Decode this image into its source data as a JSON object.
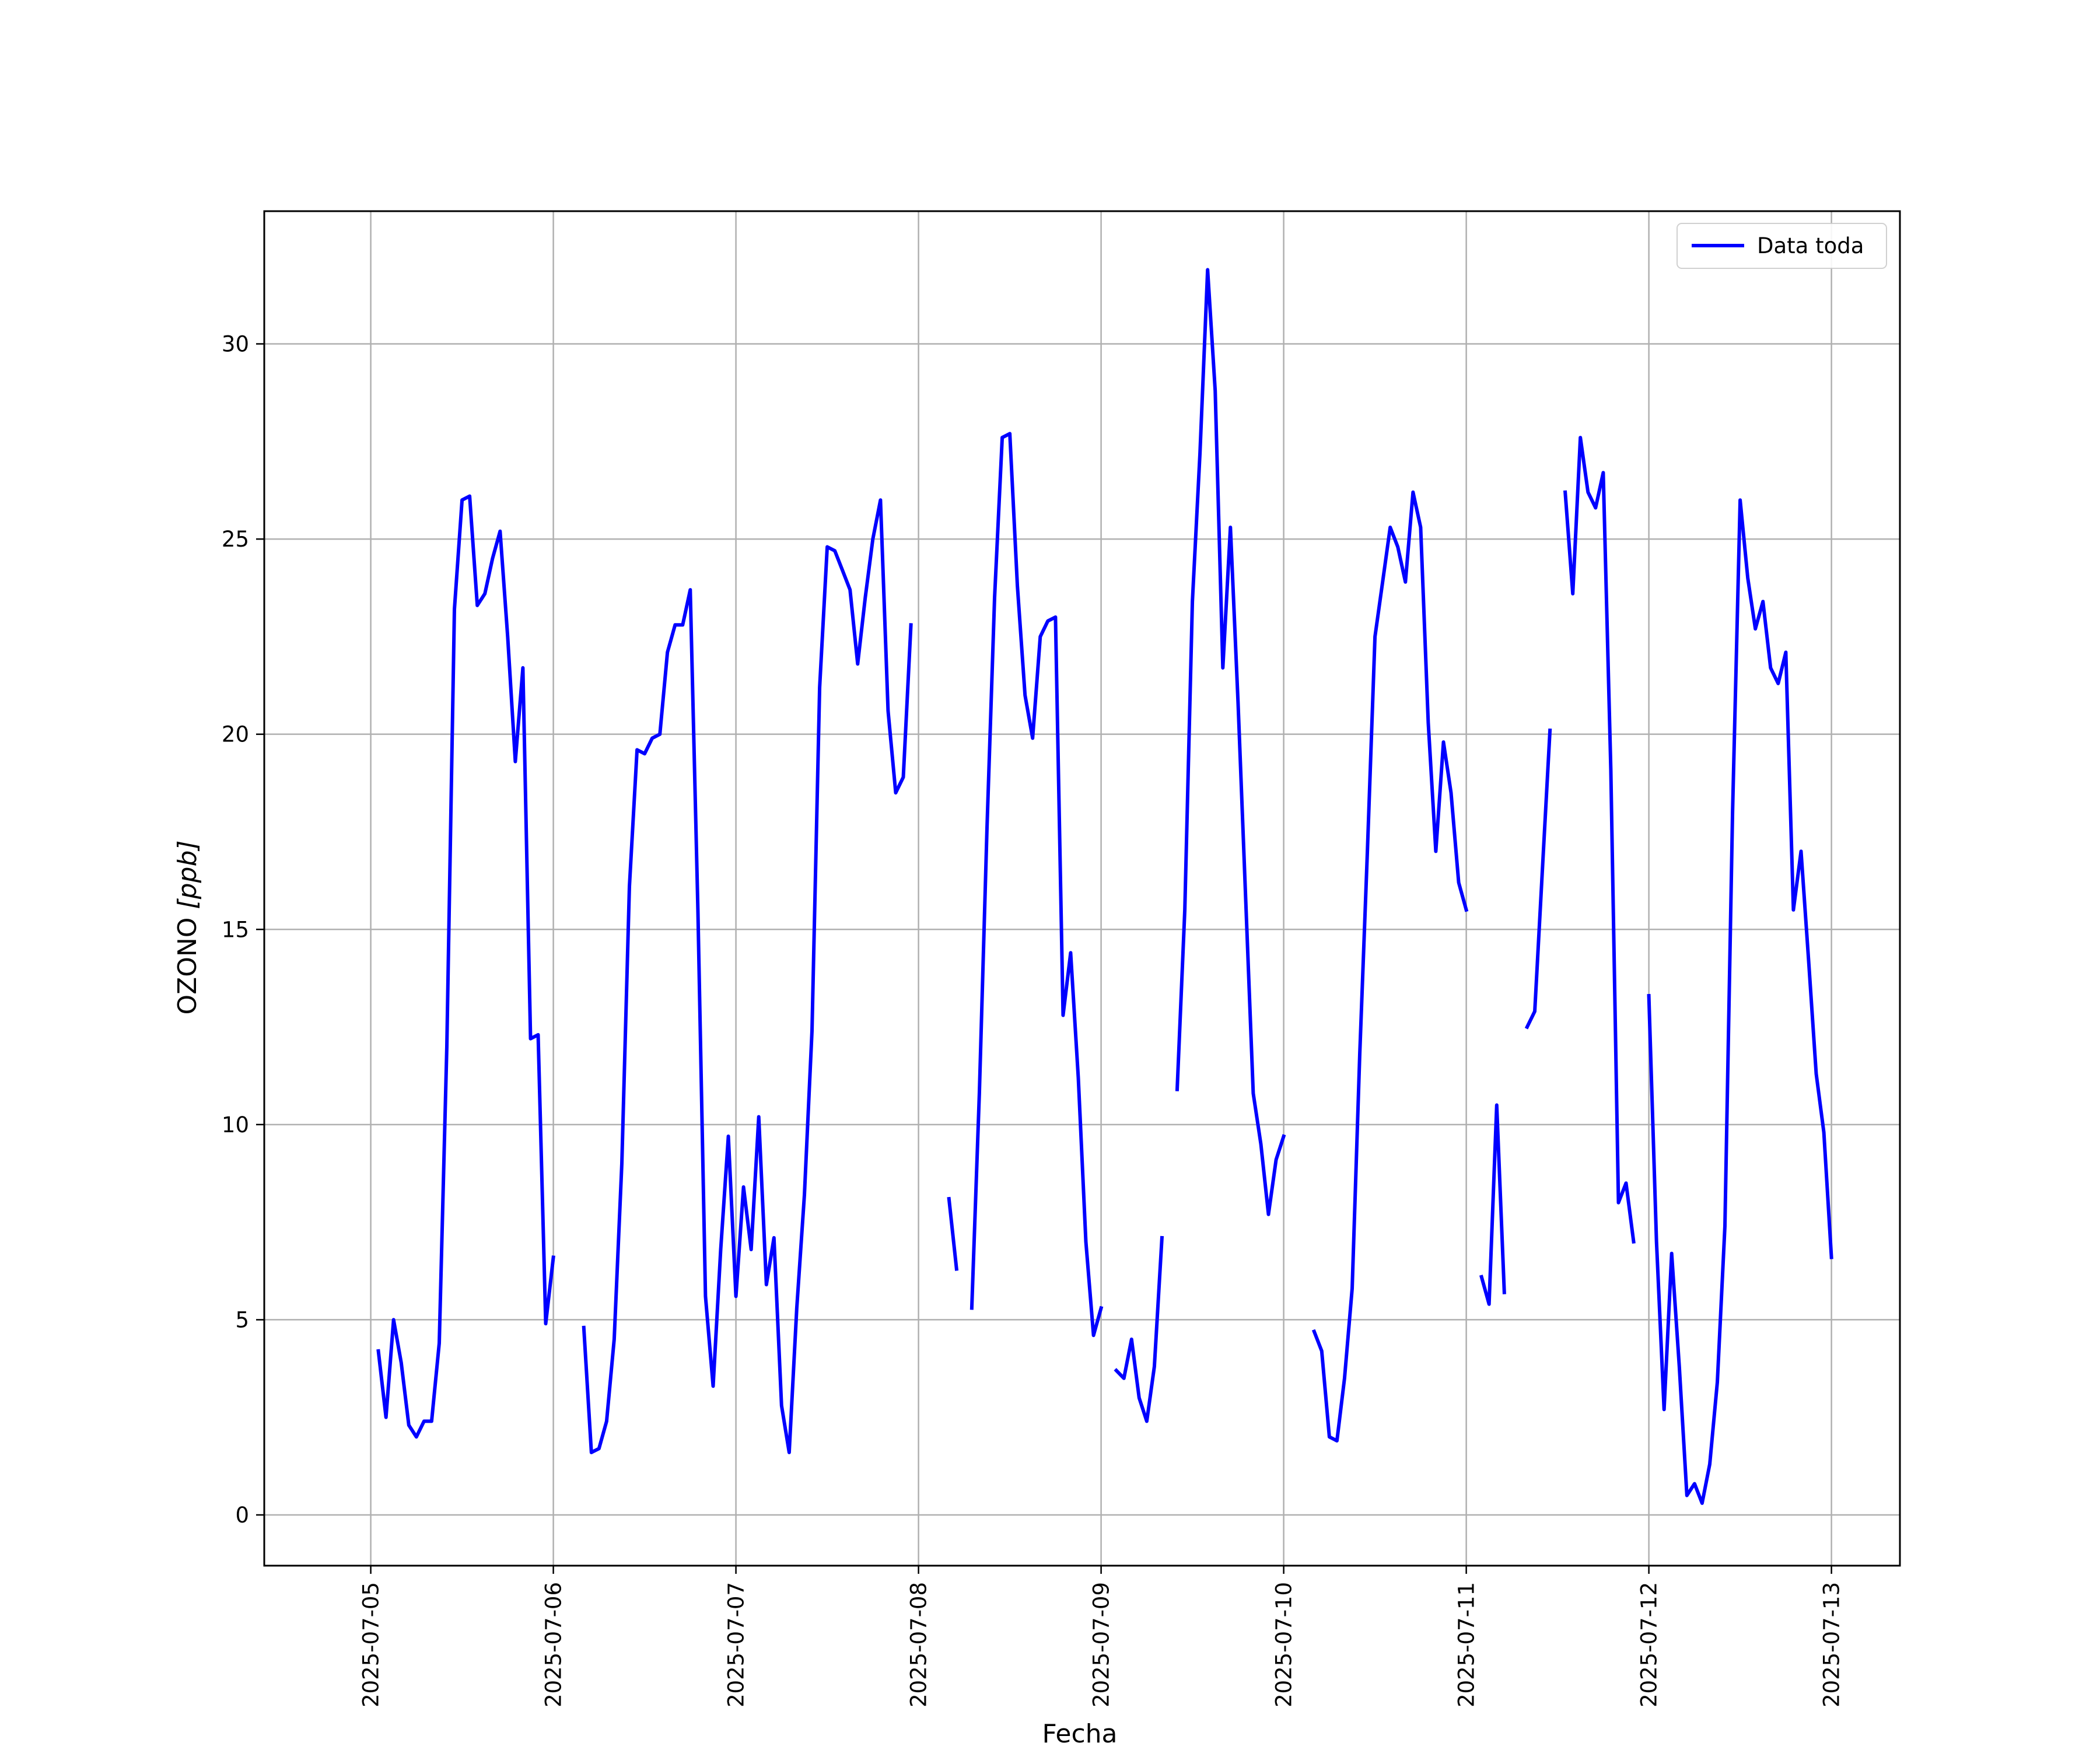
{
  "chart_data": {
    "type": "line",
    "xlabel": "Fecha",
    "ylabel": "OZONO",
    "ylabel_unit": "[ppb]",
    "x_start_date": "2025-07-05",
    "xlim": [
      "2025-07-04 10:00",
      "2025-07-13 09:00"
    ],
    "ylim": [
      -1.3,
      33.4
    ],
    "x_ticks": [
      "2025-07-05",
      "2025-07-06",
      "2025-07-07",
      "2025-07-08",
      "2025-07-09",
      "2025-07-10",
      "2025-07-11",
      "2025-07-12",
      "2025-07-13"
    ],
    "y_ticks": [
      0,
      5,
      10,
      15,
      20,
      25,
      30
    ],
    "grid": true,
    "legend": {
      "position": "top-right",
      "entries": [
        "Data toda"
      ]
    },
    "series": [
      {
        "name": "Data toda",
        "color": "#0000ff",
        "segments": [
          [
            [
              "2025-07-05 01:00",
              4.2
            ],
            [
              "2025-07-05 02:00",
              2.5
            ],
            [
              "2025-07-05 03:00",
              5.0
            ],
            [
              "2025-07-05 04:00",
              3.9
            ],
            [
              "2025-07-05 05:00",
              2.3
            ],
            [
              "2025-07-05 06:00",
              2.0
            ],
            [
              "2025-07-05 07:00",
              2.4
            ],
            [
              "2025-07-05 08:00",
              2.4
            ],
            [
              "2025-07-05 09:00",
              4.4
            ],
            [
              "2025-07-05 10:00",
              12.0
            ],
            [
              "2025-07-05 11:00",
              23.2
            ],
            [
              "2025-07-05 12:00",
              26.0
            ],
            [
              "2025-07-05 13:00",
              26.1
            ],
            [
              "2025-07-05 14:00",
              23.3
            ],
            [
              "2025-07-05 15:00",
              23.6
            ],
            [
              "2025-07-05 16:00",
              24.5
            ],
            [
              "2025-07-05 17:00",
              25.2
            ],
            [
              "2025-07-05 18:00",
              22.5
            ],
            [
              "2025-07-05 19:00",
              19.3
            ],
            [
              "2025-07-05 20:00",
              21.7
            ],
            [
              "2025-07-05 21:00",
              12.2
            ],
            [
              "2025-07-05 22:00",
              12.3
            ],
            [
              "2025-07-05 23:00",
              4.9
            ],
            [
              "2025-07-06 00:00",
              6.6
            ]
          ],
          [
            [
              "2025-07-06 04:00",
              4.8
            ],
            [
              "2025-07-06 05:00",
              1.6
            ],
            [
              "2025-07-06 06:00",
              1.7
            ],
            [
              "2025-07-06 07:00",
              2.4
            ],
            [
              "2025-07-06 08:00",
              4.5
            ],
            [
              "2025-07-06 09:00",
              9.0
            ],
            [
              "2025-07-06 10:00",
              16.1
            ],
            [
              "2025-07-06 11:00",
              19.6
            ],
            [
              "2025-07-06 12:00",
              19.5
            ],
            [
              "2025-07-06 13:00",
              19.9
            ],
            [
              "2025-07-06 14:00",
              20.0
            ],
            [
              "2025-07-06 15:00",
              22.1
            ],
            [
              "2025-07-06 16:00",
              22.8
            ],
            [
              "2025-07-06 17:00",
              22.8
            ],
            [
              "2025-07-06 18:00",
              23.7
            ],
            [
              "2025-07-06 19:00",
              15.5
            ],
            [
              "2025-07-06 20:00",
              5.6
            ],
            [
              "2025-07-06 21:00",
              3.3
            ],
            [
              "2025-07-06 22:00",
              6.8
            ],
            [
              "2025-07-06 23:00",
              9.7
            ],
            [
              "2025-07-07 00:00",
              5.6
            ],
            [
              "2025-07-07 01:00",
              8.4
            ],
            [
              "2025-07-07 02:00",
              6.8
            ],
            [
              "2025-07-07 03:00",
              10.2
            ],
            [
              "2025-07-07 04:00",
              5.9
            ],
            [
              "2025-07-07 05:00",
              7.1
            ],
            [
              "2025-07-07 06:00",
              2.8
            ],
            [
              "2025-07-07 07:00",
              1.6
            ],
            [
              "2025-07-07 08:00",
              5.3
            ],
            [
              "2025-07-07 09:00",
              8.2
            ],
            [
              "2025-07-07 10:00",
              12.4
            ],
            [
              "2025-07-07 11:00",
              21.2
            ],
            [
              "2025-07-07 12:00",
              24.8
            ],
            [
              "2025-07-07 13:00",
              24.7
            ],
            [
              "2025-07-07 14:00",
              24.2
            ],
            [
              "2025-07-07 15:00",
              23.7
            ],
            [
              "2025-07-07 16:00",
              21.8
            ],
            [
              "2025-07-07 17:00",
              23.5
            ],
            [
              "2025-07-07 18:00",
              25.0
            ],
            [
              "2025-07-07 19:00",
              26.0
            ],
            [
              "2025-07-07 20:00",
              20.6
            ],
            [
              "2025-07-07 21:00",
              18.5
            ],
            [
              "2025-07-07 22:00",
              18.9
            ],
            [
              "2025-07-07 23:00",
              22.8
            ]
          ],
          [
            [
              "2025-07-08 04:00",
              8.1
            ],
            [
              "2025-07-08 05:00",
              6.3
            ]
          ],
          [
            [
              "2025-07-08 07:00",
              5.3
            ],
            [
              "2025-07-08 08:00",
              10.8
            ],
            [
              "2025-07-08 09:00",
              17.6
            ],
            [
              "2025-07-08 10:00",
              23.5
            ],
            [
              "2025-07-08 11:00",
              27.6
            ],
            [
              "2025-07-08 12:00",
              27.7
            ],
            [
              "2025-07-08 13:00",
              23.8
            ],
            [
              "2025-07-08 14:00",
              21.0
            ],
            [
              "2025-07-08 15:00",
              19.9
            ],
            [
              "2025-07-08 16:00",
              22.5
            ],
            [
              "2025-07-08 17:00",
              22.9
            ],
            [
              "2025-07-08 18:00",
              23.0
            ],
            [
              "2025-07-08 19:00",
              12.8
            ],
            [
              "2025-07-08 20:00",
              14.4
            ],
            [
              "2025-07-08 21:00",
              11.2
            ],
            [
              "2025-07-08 22:00",
              7.0
            ],
            [
              "2025-07-08 23:00",
              4.6
            ],
            [
              "2025-07-09 00:00",
              5.3
            ]
          ],
          [
            [
              "2025-07-09 02:00",
              3.7
            ],
            [
              "2025-07-09 03:00",
              3.5
            ],
            [
              "2025-07-09 04:00",
              4.5
            ],
            [
              "2025-07-09 05:00",
              3.0
            ],
            [
              "2025-07-09 06:00",
              2.4
            ],
            [
              "2025-07-09 07:00",
              3.8
            ],
            [
              "2025-07-09 08:00",
              7.1
            ]
          ],
          [
            [
              "2025-07-09 10:00",
              10.9
            ],
            [
              "2025-07-09 11:00",
              15.5
            ],
            [
              "2025-07-09 12:00",
              23.4
            ],
            [
              "2025-07-09 13:00",
              27.2
            ],
            [
              "2025-07-09 14:00",
              31.9
            ],
            [
              "2025-07-09 15:00",
              28.8
            ],
            [
              "2025-07-09 16:00",
              21.7
            ],
            [
              "2025-07-09 17:00",
              25.3
            ],
            [
              "2025-07-09 18:00",
              20.8
            ],
            [
              "2025-07-09 19:00",
              15.8
            ],
            [
              "2025-07-09 20:00",
              10.8
            ],
            [
              "2025-07-09 21:00",
              9.5
            ],
            [
              "2025-07-09 22:00",
              7.7
            ],
            [
              "2025-07-09 23:00",
              9.1
            ],
            [
              "2025-07-10 00:00",
              9.7
            ]
          ],
          [
            [
              "2025-07-10 04:00",
              4.7
            ],
            [
              "2025-07-10 05:00",
              4.2
            ],
            [
              "2025-07-10 06:00",
              2.0
            ],
            [
              "2025-07-10 07:00",
              1.9
            ],
            [
              "2025-07-10 08:00",
              3.5
            ],
            [
              "2025-07-10 09:00",
              5.8
            ],
            [
              "2025-07-10 10:00",
              11.8
            ],
            [
              "2025-07-10 11:00",
              17.0
            ],
            [
              "2025-07-10 12:00",
              22.5
            ],
            [
              "2025-07-10 13:00",
              23.9
            ],
            [
              "2025-07-10 14:00",
              25.3
            ],
            [
              "2025-07-10 15:00",
              24.8
            ],
            [
              "2025-07-10 16:00",
              23.9
            ],
            [
              "2025-07-10 17:00",
              26.2
            ],
            [
              "2025-07-10 18:00",
              25.3
            ],
            [
              "2025-07-10 19:00",
              20.3
            ],
            [
              "2025-07-10 20:00",
              17.0
            ],
            [
              "2025-07-10 21:00",
              19.8
            ],
            [
              "2025-07-10 22:00",
              18.5
            ],
            [
              "2025-07-10 23:00",
              16.2
            ],
            [
              "2025-07-11 00:00",
              15.5
            ]
          ],
          [
            [
              "2025-07-11 02:00",
              6.1
            ],
            [
              "2025-07-11 03:00",
              5.4
            ],
            [
              "2025-07-11 04:00",
              10.5
            ],
            [
              "2025-07-11 05:00",
              5.7
            ]
          ],
          [
            [
              "2025-07-11 08:00",
              12.5
            ],
            [
              "2025-07-11 09:00",
              12.9
            ],
            [
              "2025-07-11 10:00",
              16.5
            ],
            [
              "2025-07-11 11:00",
              20.1
            ]
          ],
          [
            [
              "2025-07-11 13:00",
              26.2
            ],
            [
              "2025-07-11 14:00",
              23.6
            ],
            [
              "2025-07-11 15:00",
              27.6
            ],
            [
              "2025-07-11 16:00",
              26.2
            ],
            [
              "2025-07-11 17:00",
              25.8
            ],
            [
              "2025-07-11 18:00",
              26.7
            ],
            [
              "2025-07-11 19:00",
              19.1
            ],
            [
              "2025-07-11 20:00",
              8.0
            ],
            [
              "2025-07-11 21:00",
              8.5
            ],
            [
              "2025-07-11 22:00",
              7.0
            ]
          ],
          [
            [
              "2025-07-12 00:00",
              13.3
            ],
            [
              "2025-07-12 01:00",
              7.0
            ],
            [
              "2025-07-12 02:00",
              2.7
            ],
            [
              "2025-07-12 03:00",
              6.7
            ],
            [
              "2025-07-12 04:00",
              3.8
            ],
            [
              "2025-07-12 05:00",
              0.5
            ],
            [
              "2025-07-12 06:00",
              0.8
            ],
            [
              "2025-07-12 07:00",
              0.3
            ],
            [
              "2025-07-12 08:00",
              1.3
            ],
            [
              "2025-07-12 09:00",
              3.4
            ],
            [
              "2025-07-12 10:00",
              7.4
            ],
            [
              "2025-07-12 11:00",
              18.0
            ],
            [
              "2025-07-12 12:00",
              26.0
            ],
            [
              "2025-07-12 13:00",
              24.0
            ],
            [
              "2025-07-12 14:00",
              22.7
            ],
            [
              "2025-07-12 15:00",
              23.4
            ],
            [
              "2025-07-12 16:00",
              21.7
            ],
            [
              "2025-07-12 17:00",
              21.3
            ],
            [
              "2025-07-12 18:00",
              22.1
            ],
            [
              "2025-07-12 19:00",
              15.5
            ],
            [
              "2025-07-12 20:00",
              17.0
            ],
            [
              "2025-07-12 21:00",
              14.2
            ],
            [
              "2025-07-12 22:00",
              11.3
            ],
            [
              "2025-07-12 23:00",
              9.8
            ],
            [
              "2025-07-13 00:00",
              6.6
            ]
          ]
        ]
      }
    ]
  }
}
